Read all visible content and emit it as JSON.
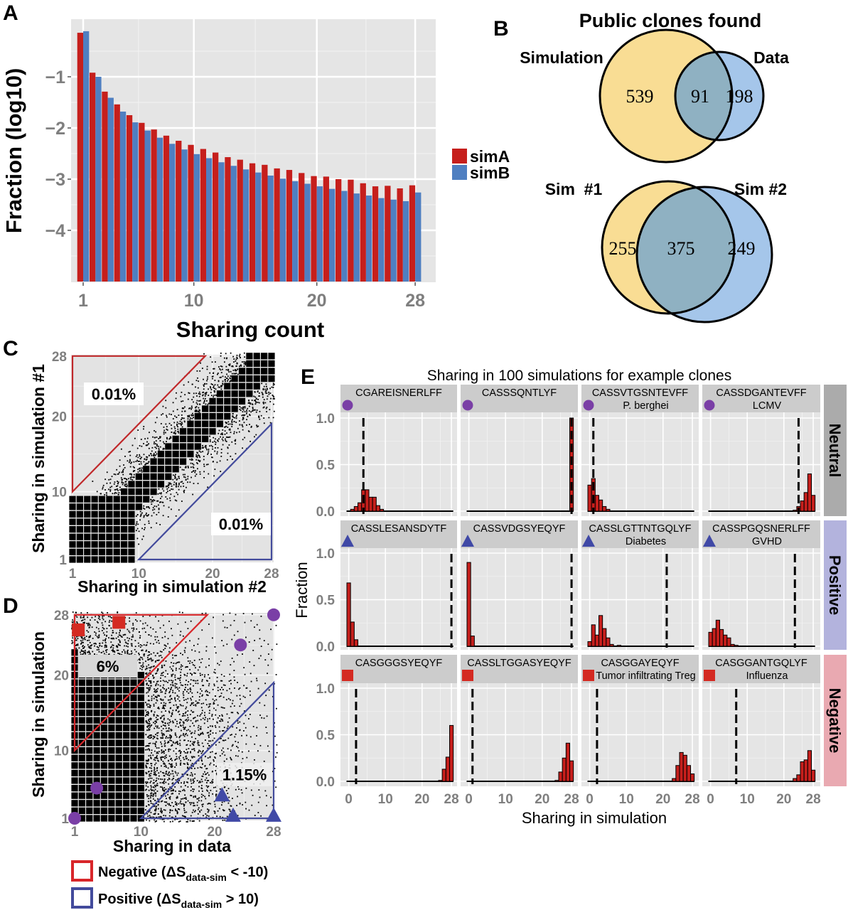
{
  "panel_labels": {
    "a": "A",
    "b": "B",
    "c": "C",
    "d": "D",
    "e": "E"
  },
  "chart_data": [
    {
      "id": "A",
      "type": "bar",
      "xlabel": "Sharing count",
      "ylabel": "Fraction (log10)",
      "x": [
        1,
        2,
        3,
        4,
        5,
        6,
        7,
        8,
        9,
        10,
        11,
        12,
        13,
        14,
        15,
        16,
        17,
        18,
        19,
        20,
        21,
        22,
        23,
        24,
        25,
        26,
        27,
        28
      ],
      "xticks": [
        1,
        10,
        20,
        28
      ],
      "xtick_labels": [
        "1",
        "10",
        "20",
        "28"
      ],
      "yticks": [
        -1,
        -2,
        -3,
        -4
      ],
      "ytick_labels": [
        "−1",
        "−2",
        "−3",
        "−4"
      ],
      "ylim": [
        -5,
        0.12
      ],
      "grid": true,
      "legend": "right",
      "series": [
        {
          "name": "simA",
          "color": "#c61f1c",
          "values": [
            -0.14,
            -0.92,
            -1.29,
            -1.54,
            -1.75,
            -1.9,
            -2.03,
            -2.15,
            -2.25,
            -2.33,
            -2.41,
            -2.48,
            -2.57,
            -2.62,
            -2.69,
            -2.72,
            -2.79,
            -2.82,
            -2.88,
            -2.94,
            -2.95,
            -3.0,
            -3.01,
            -3.08,
            -3.14,
            -3.13,
            -3.18,
            -3.12
          ]
        },
        {
          "name": "simB",
          "color": "#4f7fc1",
          "values": [
            -0.11,
            -1.0,
            -1.41,
            -1.68,
            -1.89,
            -2.05,
            -2.19,
            -2.31,
            -2.42,
            -2.51,
            -2.59,
            -2.67,
            -2.74,
            -2.81,
            -2.87,
            -2.93,
            -2.99,
            -3.04,
            -3.09,
            -3.14,
            -3.19,
            -3.23,
            -3.28,
            -3.32,
            -3.37,
            -3.4,
            -3.43,
            -3.26
          ]
        }
      ]
    },
    {
      "id": "B",
      "type": "venn",
      "title": "Public clones found",
      "colors": {
        "a": "#f9dd94",
        "b": "#a5c6ea",
        "overlap": "#8fb1c2"
      },
      "diagrams": [
        {
          "set_a": "Simulation",
          "set_b": "Data",
          "only_a": "539",
          "both": "91",
          "only_b": "198"
        },
        {
          "set_a": "Sim  #1",
          "set_b": "Sim #2",
          "only_a": "255",
          "both": "375",
          "only_b": "249"
        }
      ]
    },
    {
      "id": "C",
      "type": "scatter",
      "xlabel": "Sharing in simulation #2",
      "ylabel": "Sharing in simulation #1",
      "xlim": [
        1,
        28
      ],
      "ylim": [
        1,
        28
      ],
      "xticks": [
        1,
        10,
        20,
        28
      ],
      "xtick_labels": [
        "1",
        "10",
        "20",
        "28"
      ],
      "yticks": [
        1,
        10,
        20,
        28
      ],
      "ytick_labels": [
        "1",
        "10",
        "20",
        "28"
      ],
      "regions": [
        {
          "kind": "negative",
          "color": "#c0282a",
          "fraction_label": "0.01%"
        },
        {
          "kind": "positive",
          "color": "#434b9c",
          "fraction_label": "0.01%"
        }
      ]
    },
    {
      "id": "D",
      "type": "scatter",
      "xlabel": "Sharing in data",
      "ylabel": "Sharing in simulation",
      "xlim": [
        1,
        28
      ],
      "ylim": [
        1,
        28
      ],
      "xticks": [
        1,
        10,
        20,
        28
      ],
      "xtick_labels": [
        "1",
        "10",
        "20",
        "28"
      ],
      "yticks": [
        1,
        10,
        20,
        28
      ],
      "ytick_labels": [
        "1",
        "10",
        "20",
        "28"
      ],
      "regions": [
        {
          "kind": "negative",
          "color": "#d8262a",
          "fraction_label": "6%"
        },
        {
          "kind": "positive",
          "color": "#434b9c",
          "fraction_label": "1.15%"
        }
      ],
      "highlighted_clones": [
        {
          "category": "Negative",
          "shape": "square",
          "color": "#d42a22",
          "x": 1.5,
          "y": 26
        },
        {
          "category": "Negative",
          "shape": "square",
          "color": "#d42a22",
          "x": 7,
          "y": 27
        },
        {
          "category": "Neutral",
          "shape": "circle",
          "color": "#7a3fa6",
          "x": 28,
          "y": 28
        },
        {
          "category": "Neutral",
          "shape": "circle",
          "color": "#7a3fa6",
          "x": 23.5,
          "y": 24
        },
        {
          "category": "Neutral",
          "shape": "circle",
          "color": "#7a3fa6",
          "x": 4,
          "y": 5
        },
        {
          "category": "Neutral",
          "shape": "circle",
          "color": "#7a3fa6",
          "x": 1,
          "y": 1
        },
        {
          "category": "Positive",
          "shape": "triangle",
          "color": "#4049a6",
          "x": 21,
          "y": 4
        },
        {
          "category": "Positive",
          "shape": "triangle",
          "color": "#4049a6",
          "x": 22.5,
          "y": 1.3
        },
        {
          "category": "Positive",
          "shape": "triangle",
          "color": "#4049a6",
          "x": 28,
          "y": 1.3
        }
      ],
      "legend": [
        {
          "prefix": "Negative (ΔS",
          "sub": "data-sim",
          "suffix": " < -10)",
          "color": "#d8262a"
        },
        {
          "prefix": "Positive (ΔS",
          "sub": "data-sim",
          "suffix": " > 10)",
          "color": "#434b9c"
        }
      ]
    },
    {
      "id": "E",
      "type": "histogram",
      "title": "Sharing in 100 simulations for example clones",
      "xlabel": "Sharing in simulation",
      "ylabel": "Fraction",
      "xticks": [
        0,
        10,
        20,
        28
      ],
      "xtick_labels": [
        "0",
        "10",
        "20",
        "28"
      ],
      "yticks": [
        0,
        0.5,
        1.0
      ],
      "ytick_labels": [
        "0.0",
        "0.5",
        "1.0"
      ],
      "bar_color": "#c61f1c",
      "rows": [
        {
          "label": "Neutral",
          "color": "#ababab",
          "marker": "circle",
          "marker_color": "#7a3fa6"
        },
        {
          "label": "Positive",
          "color": "#b3b3dd",
          "marker": "triangle",
          "marker_color": "#4049a6"
        },
        {
          "label": "Negative",
          "color": "#e9a9b1",
          "marker": "square",
          "marker_color": "#d42a22"
        }
      ],
      "facets": [
        {
          "row": 0,
          "clone": "CGAREISNERLFF",
          "disease": "",
          "observed": 4,
          "bins": [
            [
              1,
              0.02
            ],
            [
              2,
              0.05
            ],
            [
              3,
              0.09
            ],
            [
              4,
              0.23
            ],
            [
              5,
              0.23
            ],
            [
              6,
              0.15
            ],
            [
              7,
              0.15
            ],
            [
              8,
              0.06
            ],
            [
              9,
              0.02
            ]
          ]
        },
        {
          "row": 0,
          "clone": "CASSSQNTLYF",
          "disease": "",
          "observed": 28,
          "bins": [
            [
              28,
              1.0
            ]
          ]
        },
        {
          "row": 0,
          "clone": "CASSVTGSNTEVFF",
          "disease": "P. berghei",
          "observed": 1,
          "bins": [
            [
              0,
              0.28
            ],
            [
              1,
              0.35
            ],
            [
              2,
              0.17
            ],
            [
              3,
              0.12
            ],
            [
              4,
              0.05
            ],
            [
              5,
              0.02
            ]
          ]
        },
        {
          "row": 0,
          "clone": "CASSDGANTEVFF",
          "disease": "LCMV",
          "observed": 24,
          "bins": [
            [
              23,
              0.01
            ],
            [
              24,
              0.05
            ],
            [
              25,
              0.11
            ],
            [
              26,
              0.2
            ],
            [
              27,
              0.4
            ],
            [
              28,
              0.17
            ]
          ]
        },
        {
          "row": 1,
          "clone": "CASSLESANSDYTF",
          "disease": "",
          "observed": 28,
          "bins": [
            [
              0,
              0.68
            ],
            [
              1,
              0.26
            ],
            [
              2,
              0.07
            ]
          ]
        },
        {
          "row": 1,
          "clone": "CASSVDGSYEQYF",
          "disease": "",
          "observed": 28,
          "bins": [
            [
              0,
              0.9
            ],
            [
              1,
              0.11
            ]
          ]
        },
        {
          "row": 1,
          "clone": "CASSLGTTNTGQLYF",
          "disease": "Diabetes",
          "observed": 21,
          "bins": [
            [
              0,
              0.05
            ],
            [
              1,
              0.23
            ],
            [
              2,
              0.12
            ],
            [
              3,
              0.33
            ],
            [
              4,
              0.19
            ],
            [
              5,
              0.09
            ],
            [
              6,
              0.02
            ],
            [
              8,
              0.01
            ]
          ]
        },
        {
          "row": 1,
          "clone": "CASSPGQSNERLFF",
          "disease": "GVHD",
          "observed": 23,
          "bins": [
            [
              0,
              0.15
            ],
            [
              1,
              0.19
            ],
            [
              2,
              0.28
            ],
            [
              3,
              0.18
            ],
            [
              4,
              0.12
            ],
            [
              5,
              0.09
            ],
            [
              6,
              0.02
            ],
            [
              7,
              0.01
            ]
          ]
        },
        {
          "row": 2,
          "clone": "CASGGGSYEQYF",
          "disease": "",
          "observed": 2,
          "bins": [
            [
              25,
              0.01
            ],
            [
              26,
              0.13
            ],
            [
              27,
              0.26
            ],
            [
              28,
              0.6
            ]
          ]
        },
        {
          "row": 2,
          "clone": "CASSLTGGASYEQYF",
          "disease": "",
          "observed": 1,
          "bins": [
            [
              24,
              0.01
            ],
            [
              25,
              0.1
            ],
            [
              26,
              0.25
            ],
            [
              27,
              0.41
            ],
            [
              28,
              0.22
            ]
          ]
        },
        {
          "row": 2,
          "clone": "CASGGAYEQYF",
          "disease": "Tumor infiltrating Treg",
          "observed": 2,
          "bins": [
            [
              23,
              0.03
            ],
            [
              24,
              0.17
            ],
            [
              25,
              0.31
            ],
            [
              26,
              0.28
            ],
            [
              27,
              0.17
            ],
            [
              28,
              0.08
            ]
          ]
        },
        {
          "row": 2,
          "clone": "CASGGANTGQLYF",
          "disease": "Influenza",
          "observed": 7,
          "bins": [
            [
              23,
              0.03
            ],
            [
              24,
              0.07
            ],
            [
              25,
              0.21
            ],
            [
              26,
              0.23
            ],
            [
              27,
              0.33
            ],
            [
              28,
              0.12
            ]
          ]
        }
      ]
    }
  ]
}
